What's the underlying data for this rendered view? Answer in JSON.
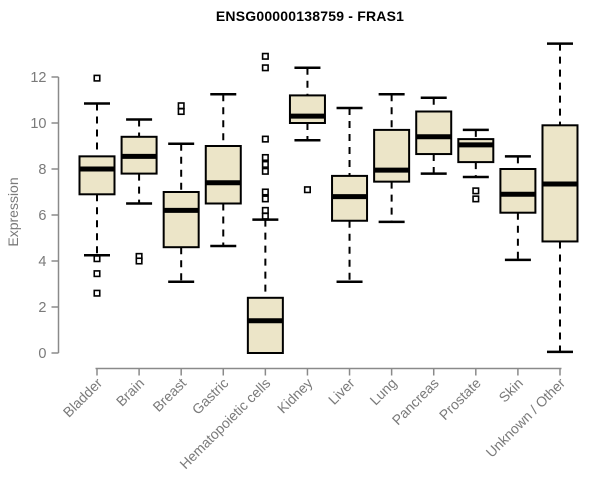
{
  "title": "ENSG00000138759 - FRAS1",
  "chart_data": {
    "type": "box",
    "title": "ENSG00000138759 - FRAS1",
    "xlabel": "",
    "ylabel": "Expression",
    "ylim": [
      0,
      13.5
    ],
    "yticks": [
      0,
      2,
      4,
      6,
      8,
      10,
      12
    ],
    "grid": false,
    "legend": "none",
    "categories": [
      "Bladder",
      "Brain",
      "Breast",
      "Gastric",
      "Hematopoietic cells",
      "Kidney",
      "Liver",
      "Lung",
      "Pancreas",
      "Prostate",
      "Skin",
      "Unknown / Other"
    ],
    "series": [
      {
        "name": "Bladder",
        "low": 4.25,
        "q1": 6.9,
        "median": 8.0,
        "q3": 8.55,
        "high": 10.85,
        "outliers": [
          11.95,
          4.1,
          3.45,
          2.6
        ]
      },
      {
        "name": "Brain",
        "low": 6.5,
        "q1": 7.8,
        "median": 8.55,
        "q3": 9.4,
        "high": 10.15,
        "outliers": [
          4.2,
          4.0
        ]
      },
      {
        "name": "Breast",
        "low": 3.1,
        "q1": 4.6,
        "median": 6.2,
        "q3": 7.0,
        "high": 9.1,
        "outliers": [
          10.75,
          10.5
        ]
      },
      {
        "name": "Gastric",
        "low": 4.65,
        "q1": 6.5,
        "median": 7.4,
        "q3": 9.0,
        "high": 11.25,
        "outliers": []
      },
      {
        "name": "Hematopoietic cells",
        "low": 0.0,
        "q1": 0.0,
        "median": 1.4,
        "q3": 2.4,
        "high": 5.8,
        "outliers": [
          12.9,
          12.4,
          9.3,
          8.5,
          8.2,
          7.9,
          7.0,
          6.7,
          6.2,
          5.95
        ]
      },
      {
        "name": "Kidney",
        "low": 9.25,
        "q1": 10.0,
        "median": 10.3,
        "q3": 11.2,
        "high": 12.4,
        "outliers": [
          7.1
        ]
      },
      {
        "name": "Liver",
        "low": 3.1,
        "q1": 5.75,
        "median": 6.8,
        "q3": 7.7,
        "high": 10.65,
        "outliers": []
      },
      {
        "name": "Lung",
        "low": 5.7,
        "q1": 7.45,
        "median": 7.95,
        "q3": 9.7,
        "high": 11.25,
        "outliers": []
      },
      {
        "name": "Pancreas",
        "low": 7.8,
        "q1": 8.65,
        "median": 9.4,
        "q3": 10.5,
        "high": 11.1,
        "outliers": []
      },
      {
        "name": "Prostate",
        "low": 7.65,
        "q1": 8.3,
        "median": 9.05,
        "q3": 9.3,
        "high": 9.7,
        "outliers": [
          7.05,
          6.7
        ]
      },
      {
        "name": "Skin",
        "low": 4.05,
        "q1": 6.1,
        "median": 6.9,
        "q3": 8.0,
        "high": 8.55,
        "outliers": []
      },
      {
        "name": "Unknown / Other",
        "low": 0.05,
        "q1": 4.85,
        "median": 7.35,
        "q3": 9.9,
        "high": 13.45,
        "outliers": []
      }
    ],
    "colors": {
      "box_fill": "#ECE5C8",
      "box_border": "#000000",
      "median": "#000000",
      "whisker": "#000000",
      "outlier_fill": "#FFFFFF",
      "outlier_border": "#000000",
      "axis_line": "#8a8a8a",
      "tick_label": "#7a7a7a",
      "title": "#000000",
      "background": "#ffffff"
    }
  }
}
